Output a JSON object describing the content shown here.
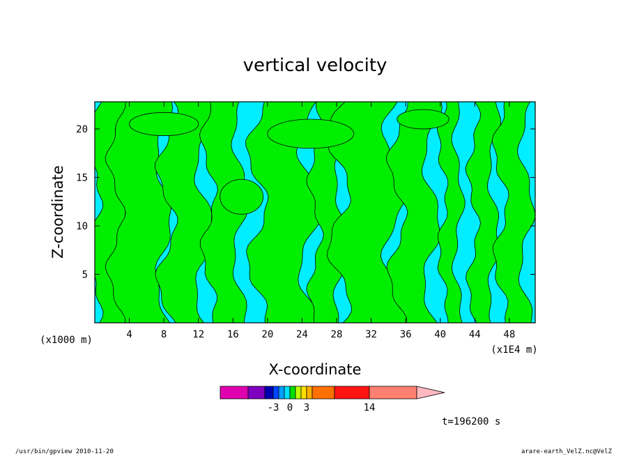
{
  "chart_data": {
    "type": "heatmap",
    "title": "vertical velocity",
    "xlabel": "X-coordinate",
    "ylabel": "Z-coordinate",
    "x_unit": "(x1E4 m)",
    "y_unit": "(x1000 m)",
    "x_ticks": [
      4,
      8,
      12,
      16,
      20,
      24,
      28,
      32,
      36,
      40,
      44,
      48
    ],
    "y_ticks": [
      5,
      10,
      15,
      20
    ],
    "xlim": [
      0,
      51
    ],
    "ylim": [
      0,
      22.8
    ],
    "colorbar": {
      "labels": [
        {
          "text": "-3",
          "value": -3
        },
        {
          "text": "0",
          "value": 0
        },
        {
          "text": "3",
          "value": 3
        },
        {
          "text": "14",
          "value": 14
        }
      ],
      "colors": [
        "#e000b0",
        "#8000c0",
        "#0000b0",
        "#0044ff",
        "#00a0ff",
        "#00e0ff",
        "#00e000",
        "#c0ff00",
        "#ffe000",
        "#ffb000",
        "#ff7000",
        "#ff1414",
        "#ff8070",
        "#ffb8c0"
      ]
    },
    "time_label": "t=196200 s",
    "colors": {
      "positive": "#00ee00",
      "negative": "#00eeff",
      "contour": "#000000"
    }
  },
  "footer": {
    "left": "/usr/bin/gpview   2010-11-20",
    "right": "arare-earth_VelZ.nc@VelZ"
  }
}
